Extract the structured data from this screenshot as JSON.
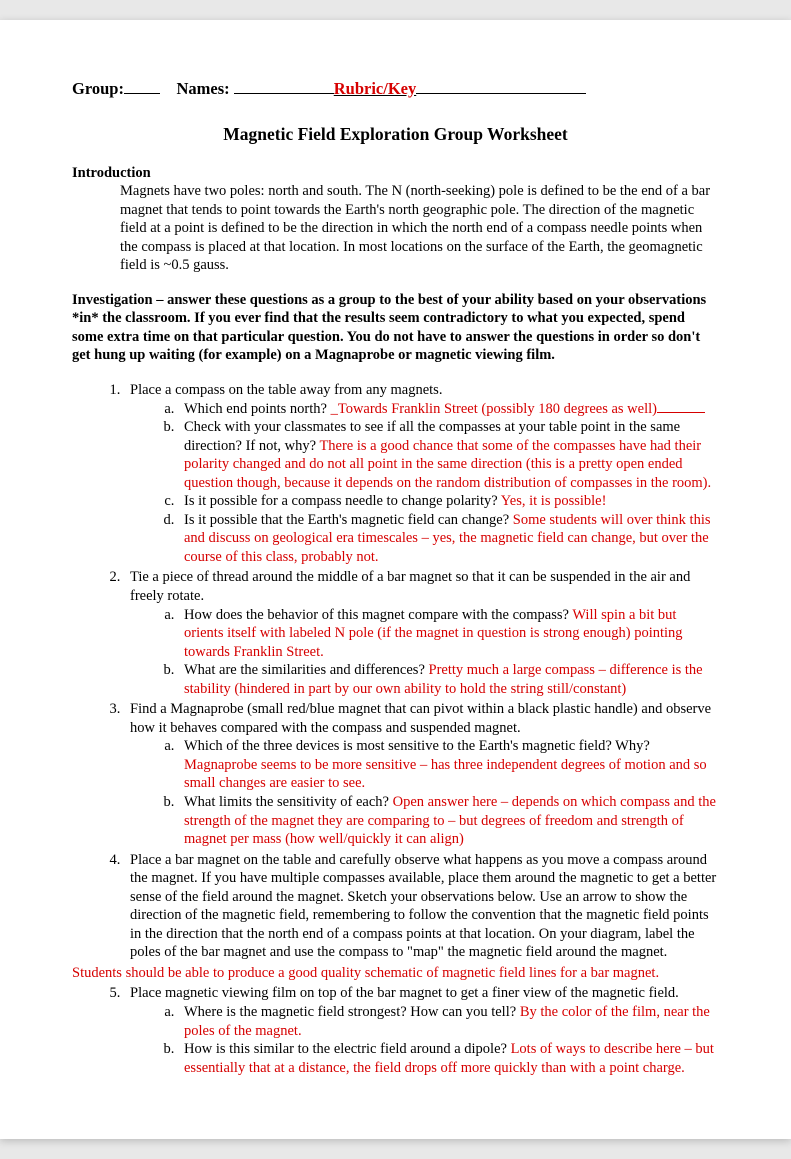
{
  "header": {
    "group_label": "Group:",
    "names_label": "Names:",
    "rubric_key": "Rubric/Key"
  },
  "title": "Magnetic Field Exploration Group Worksheet",
  "intro": {
    "label": "Introduction",
    "body": "Magnets have two poles: north and south.  The N (north-seeking) pole is defined to be the end of a bar magnet that tends to point towards the Earth's north geographic pole.  The direction of the magnetic field at a point is defined to be the direction in which the north end of a compass needle points when the compass is placed at that location.  In most locations on the surface of the Earth, the geomagnetic field is ~0.5 gauss."
  },
  "investigation": "Investigation – answer these questions as a group to the best of your ability based on your observations *in* the classroom.  If you ever find that the results seem contradictory to what you expected, spend some extra time on that particular question.  You do not have to answer the questions in order so don't get hung up waiting (for example) on a Magnaprobe or magnetic viewing film.",
  "q1": {
    "prompt": "Place a compass on the table away from any magnets.",
    "a_q": "Which end points north? ",
    "a_ans": "_Towards Franklin Street (possibly 180 degrees as well)",
    "b_q": "Check with your classmates to see if all the compasses at your table point in the same direction?  If not, why?  ",
    "b_ans": "There is a good chance that some of the compasses have had their polarity changed and do not all point in the same direction (this is a pretty open ended question though, because it depends on the random distribution of compasses in the room).",
    "c_q": "Is it possible for a compass needle to change polarity?  ",
    "c_ans": "Yes, it is possible!",
    "d_q": "Is it possible that the Earth's magnetic field can change? ",
    "d_ans": "Some students will over think this and discuss on geological era timescales – yes, the magnetic field can change, but over the course of this class, probably not."
  },
  "q2": {
    "prompt": "Tie a piece of thread around the middle of a bar magnet so that it can be suspended in the air and freely rotate.",
    "a_q": "How does the behavior of this magnet compare with the compass?  ",
    "a_ans": "Will spin a bit but orients itself with labeled N pole (if the magnet in question is strong enough) pointing towards Franklin Street.",
    "b_q": "What are the similarities and differences? ",
    "b_ans": "Pretty much a large compass – difference is the stability (hindered in part by our own ability to hold the string still/constant)"
  },
  "q3": {
    "prompt": "Find a Magnaprobe (small red/blue magnet that can pivot within a black plastic handle) and observe how it behaves compared with the compass and suspended magnet.",
    "a_q": "Which of the three devices is most sensitive to the Earth's magnetic field?  Why? ",
    "a_ans": "Magnaprobe seems to be more sensitive – has three independent degrees of motion and so small changes are easier to see.",
    "b_q": "What limits the sensitivity of each? ",
    "b_ans": "Open answer here – depends on which compass and the strength of the magnet they are comparing to – but degrees of freedom and strength of magnet per mass (how well/quickly it can align)"
  },
  "q4": {
    "prompt": "Place a bar magnet on the table and carefully observe what happens as you move a compass around the magnet.  If you have multiple compasses available, place them around the magnetic to get a better sense of the field around the magnet.  Sketch your observations below.  Use an arrow to show the direction of the magnetic field, remembering to follow the convention that the magnetic field points in the direction that the north end of a compass points at that location.   On your diagram, label the poles of the bar magnet and use the compass to \"map\" the magnetic field around the magnet."
  },
  "students_note": "Students should be able to produce a good quality schematic of magnetic field lines for a bar magnet.",
  "q5": {
    "prompt": "Place magnetic viewing film on top of the bar magnet to get a finer view of the magnetic field.",
    "a_q": "Where is the magnetic field strongest?  How can you tell?  ",
    "a_ans": "By the color of the film, near the poles of the magnet.",
    "b_q": "How is this similar to the electric field around a dipole?  ",
    "b_ans": "Lots of ways to describe here – but essentially that at a distance, the field drops off more quickly than with a point charge."
  }
}
